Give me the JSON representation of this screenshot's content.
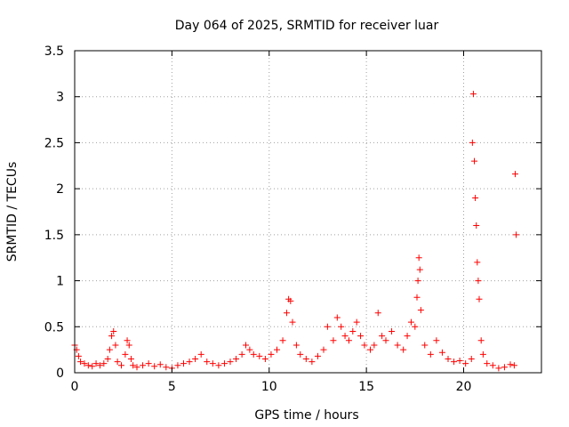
{
  "chart_data": {
    "type": "scatter",
    "title": "Day 064 of 2025, SRMTID for receiver luar",
    "xlabel": "GPS time / hours",
    "ylabel": "SRMTID / TECUs",
    "xlim": [
      0,
      24
    ],
    "ylim": [
      0,
      3.5
    ],
    "x_ticks": [
      0,
      5,
      10,
      15,
      20
    ],
    "x_tick_labels": [
      "0",
      "5",
      "10",
      "15",
      "20"
    ],
    "y_ticks": [
      0,
      0.5,
      1,
      1.5,
      2,
      2.5,
      3,
      3.5
    ],
    "y_tick_labels": [
      "0",
      "0.5",
      "1",
      "1.5",
      "2",
      "2.5",
      "3",
      "3.5"
    ],
    "grid": true,
    "marker": "plus",
    "color": "#ff0000",
    "series": [
      {
        "x": [
          0.0,
          0.1,
          0.2,
          0.3,
          0.5,
          0.7,
          0.9,
          1.1,
          1.3,
          1.5,
          1.7,
          1.8,
          1.9,
          2.0,
          2.1,
          2.2,
          2.4,
          2.6,
          2.7,
          2.8,
          2.9,
          3.0,
          3.2,
          3.5,
          3.8,
          4.1,
          4.4,
          4.7,
          5.0,
          5.3,
          5.6,
          5.9,
          6.2,
          6.5,
          6.8,
          7.1,
          7.4,
          7.7,
          8.0,
          8.3,
          8.6,
          8.8,
          9.0,
          9.2,
          9.5,
          9.8,
          10.1,
          10.4,
          10.7,
          10.9,
          11.0,
          11.1,
          11.2,
          11.4,
          11.6,
          11.9,
          12.2,
          12.5,
          12.8,
          13.0,
          13.3,
          13.5,
          13.7,
          13.9,
          14.1,
          14.3,
          14.5,
          14.7,
          14.9,
          15.2,
          15.4,
          15.6,
          15.8,
          16.0,
          16.3,
          16.6,
          16.9,
          17.1,
          17.3,
          17.5,
          17.6,
          17.65,
          17.7,
          17.75,
          17.8,
          18.0,
          18.3,
          18.6,
          18.9,
          19.2,
          19.5,
          19.8,
          20.1,
          20.4,
          20.45,
          20.5,
          20.55,
          20.6,
          20.65,
          20.7,
          20.75,
          20.8,
          20.9,
          21.0,
          21.2,
          21.5,
          21.8,
          22.1,
          22.4,
          22.6,
          22.65,
          22.7
        ],
        "y": [
          0.3,
          0.25,
          0.18,
          0.12,
          0.1,
          0.08,
          0.07,
          0.1,
          0.08,
          0.1,
          0.15,
          0.25,
          0.4,
          0.45,
          0.3,
          0.12,
          0.08,
          0.2,
          0.35,
          0.3,
          0.15,
          0.08,
          0.06,
          0.08,
          0.1,
          0.07,
          0.09,
          0.06,
          0.05,
          0.08,
          0.1,
          0.12,
          0.15,
          0.2,
          0.12,
          0.1,
          0.08,
          0.1,
          0.12,
          0.15,
          0.2,
          0.3,
          0.25,
          0.2,
          0.18,
          0.15,
          0.2,
          0.25,
          0.35,
          0.65,
          0.8,
          0.78,
          0.55,
          0.3,
          0.2,
          0.15,
          0.12,
          0.18,
          0.25,
          0.5,
          0.35,
          0.6,
          0.5,
          0.4,
          0.35,
          0.45,
          0.55,
          0.4,
          0.3,
          0.25,
          0.3,
          0.65,
          0.4,
          0.35,
          0.45,
          0.3,
          0.25,
          0.4,
          0.55,
          0.5,
          0.82,
          1.0,
          1.25,
          1.12,
          0.68,
          0.3,
          0.2,
          0.35,
          0.22,
          0.15,
          0.12,
          0.13,
          0.1,
          0.15,
          2.5,
          3.03,
          2.3,
          1.9,
          1.6,
          1.2,
          1.0,
          0.8,
          0.35,
          0.2,
          0.1,
          0.08,
          0.05,
          0.06,
          0.09,
          0.08,
          2.16,
          1.5
        ]
      }
    ]
  }
}
